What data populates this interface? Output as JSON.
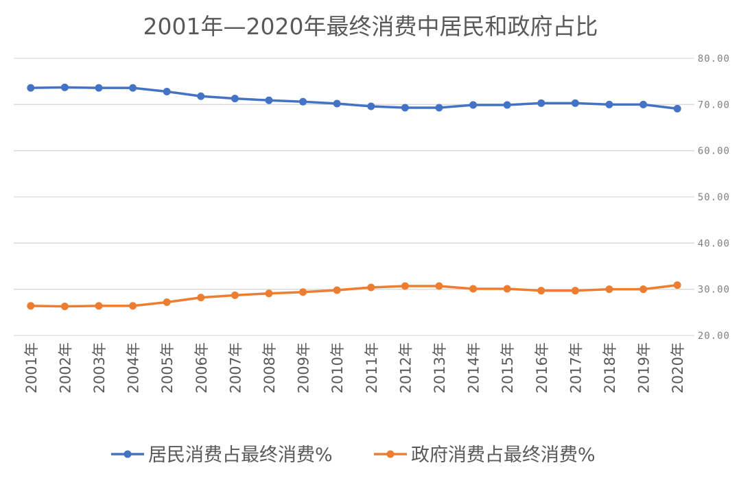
{
  "chart_data": {
    "type": "line",
    "title": "2001年—2020年最终消费中居民和政府占比",
    "xlabel": "",
    "ylabel": "",
    "categories": [
      "2001年",
      "2002年",
      "2003年",
      "2004年",
      "2005年",
      "2006年",
      "2007年",
      "2008年",
      "2009年",
      "2010年",
      "2011年",
      "2012年",
      "2013年",
      "2014年",
      "2015年",
      "2016年",
      "2017年",
      "2018年",
      "2019年",
      "2020年"
    ],
    "ylim": [
      20,
      80
    ],
    "yticks": [
      "20.00",
      "30.00",
      "40.00",
      "50.00",
      "60.00",
      "70.00",
      "80.00"
    ],
    "y_axis_position": "right",
    "grid": true,
    "legend_position": "bottom",
    "series": [
      {
        "name": "居民消费占最终消费%",
        "color": "#4472C4",
        "values": [
          73.6,
          73.7,
          73.6,
          73.6,
          72.8,
          71.8,
          71.3,
          70.9,
          70.6,
          70.2,
          69.6,
          69.3,
          69.3,
          69.9,
          69.9,
          70.3,
          70.3,
          70.0,
          70.0,
          69.1
        ]
      },
      {
        "name": "政府消费占最终消费%",
        "color": "#ED7D31",
        "values": [
          26.4,
          26.3,
          26.4,
          26.4,
          27.2,
          28.2,
          28.7,
          29.1,
          29.4,
          29.8,
          30.4,
          30.7,
          30.7,
          30.1,
          30.1,
          29.7,
          29.7,
          30.0,
          30.0,
          30.9
        ]
      }
    ]
  }
}
